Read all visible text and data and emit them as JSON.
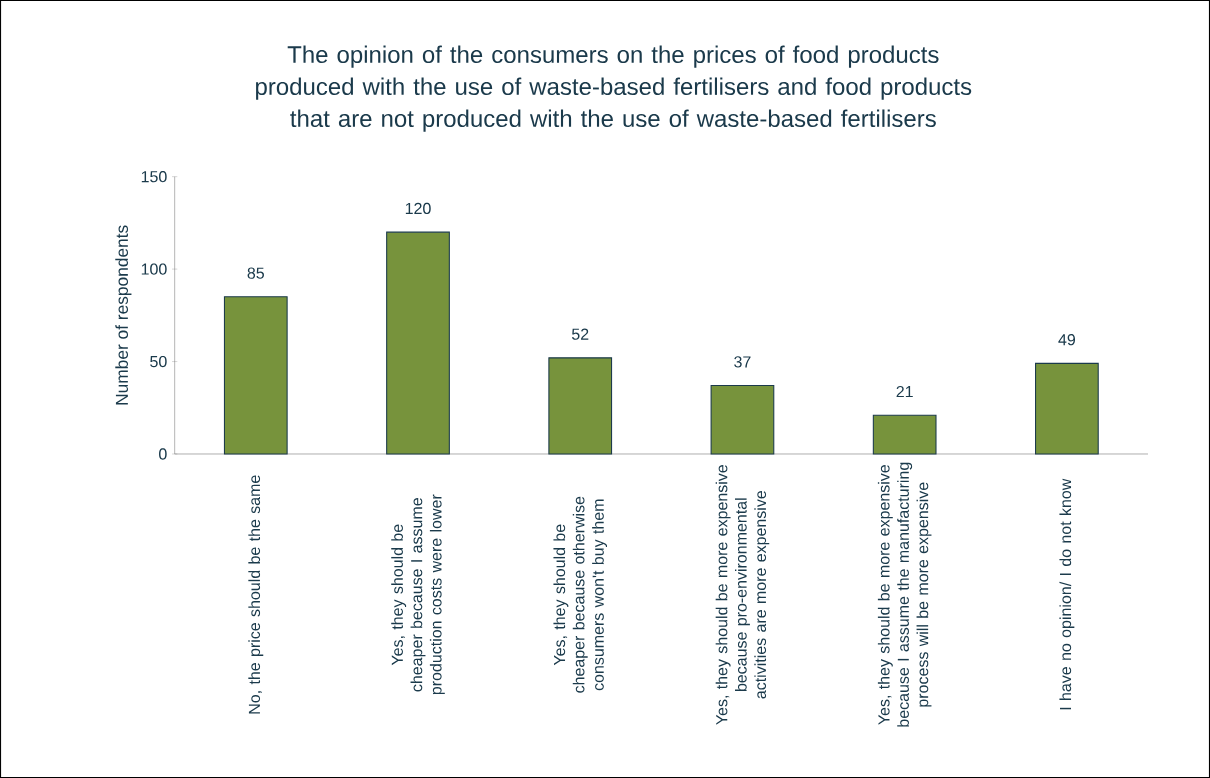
{
  "chart_data": {
    "type": "bar",
    "title": "The opinion of the consumers on the prices of food products produced with the use of waste-based fertilisers and food products that are not produced with the use of waste-based fertilisers",
    "ylabel": "Number of respondents",
    "categories": [
      "No, the price should be the same",
      "Yes, they should be cheaper because I assume production costs were lower",
      "Yes, they should be cheaper because otherwise consumers won't buy them",
      "Yes, they should be more expensive because pro-environmental activities are more expensive",
      "Yes, they should be more expensive because I assume the manufacturing process will be more expensive",
      "I have no opinion/ I do not know"
    ],
    "values": [
      85,
      120,
      52,
      37,
      21,
      49
    ],
    "color": "#77933c",
    "ylim": [
      0,
      150
    ],
    "yticks": [
      0,
      50,
      100,
      150
    ],
    "data_labels": true,
    "grid": false
  }
}
